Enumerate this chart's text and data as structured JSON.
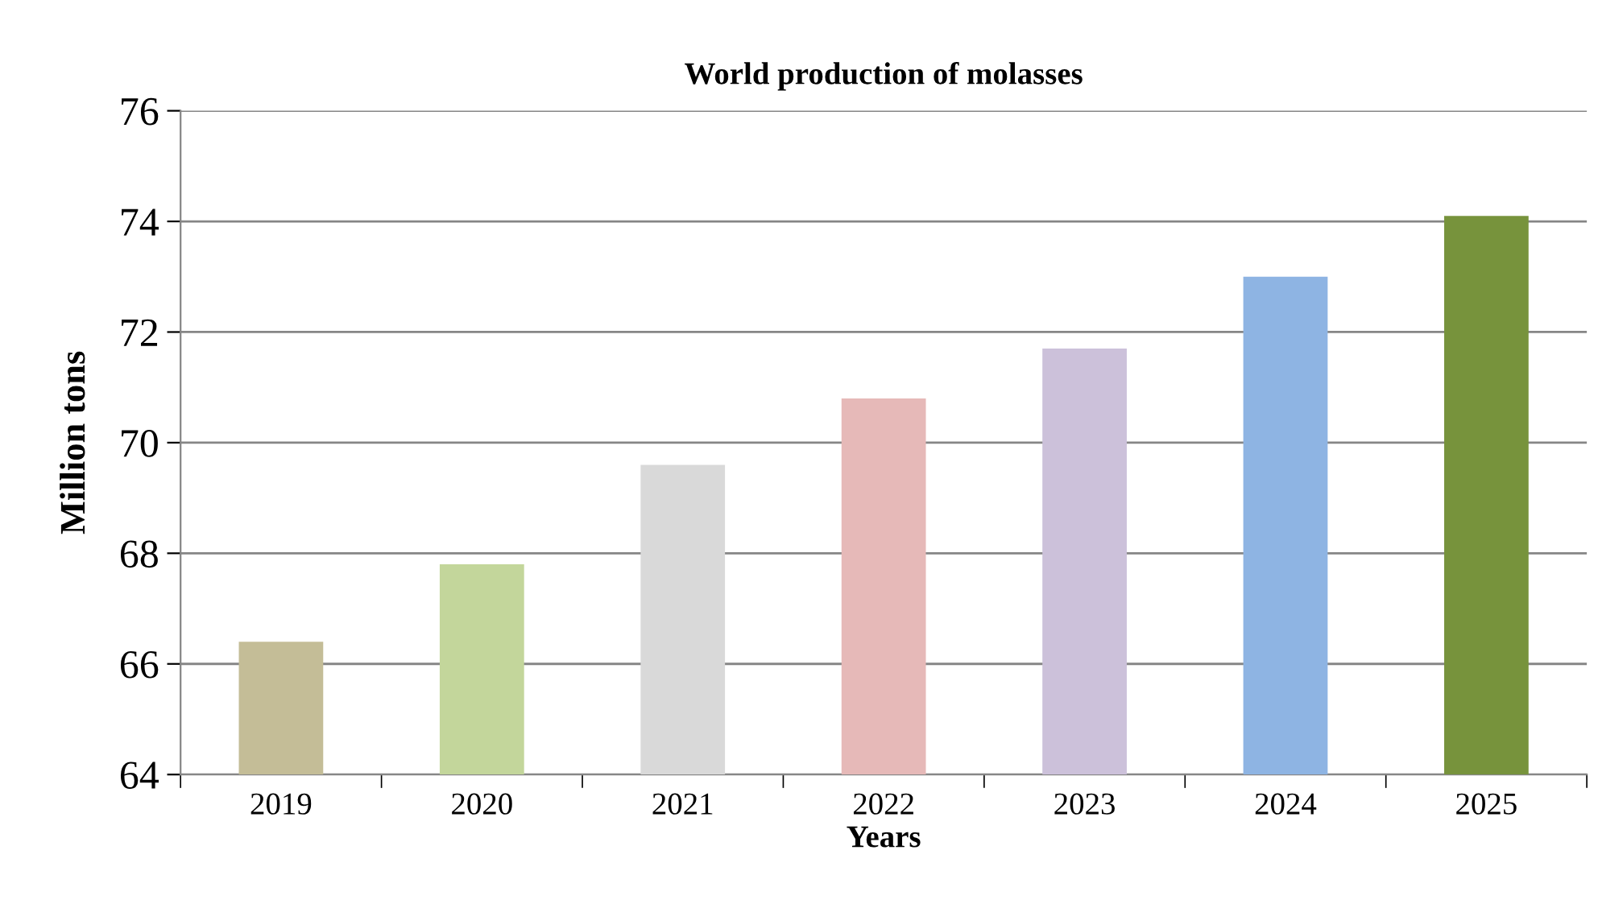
{
  "chart_data": {
    "type": "bar",
    "title": "World production of molasses",
    "xlabel": "Years",
    "ylabel": "Million tons",
    "categories": [
      "2019",
      "2020",
      "2021",
      "2022",
      "2023",
      "2024",
      "2025"
    ],
    "values": [
      66.4,
      67.8,
      69.6,
      70.8,
      71.7,
      73.0,
      74.1
    ],
    "colors": [
      "#c4bd97",
      "#c3d69b",
      "#d9d9d9",
      "#e6b9b8",
      "#ccc1da",
      "#8eb4e3",
      "#77933c"
    ],
    "ylim": [
      64,
      76
    ],
    "yticks": [
      64,
      66,
      68,
      70,
      72,
      74,
      76
    ],
    "grid": "y",
    "legend": false
  }
}
